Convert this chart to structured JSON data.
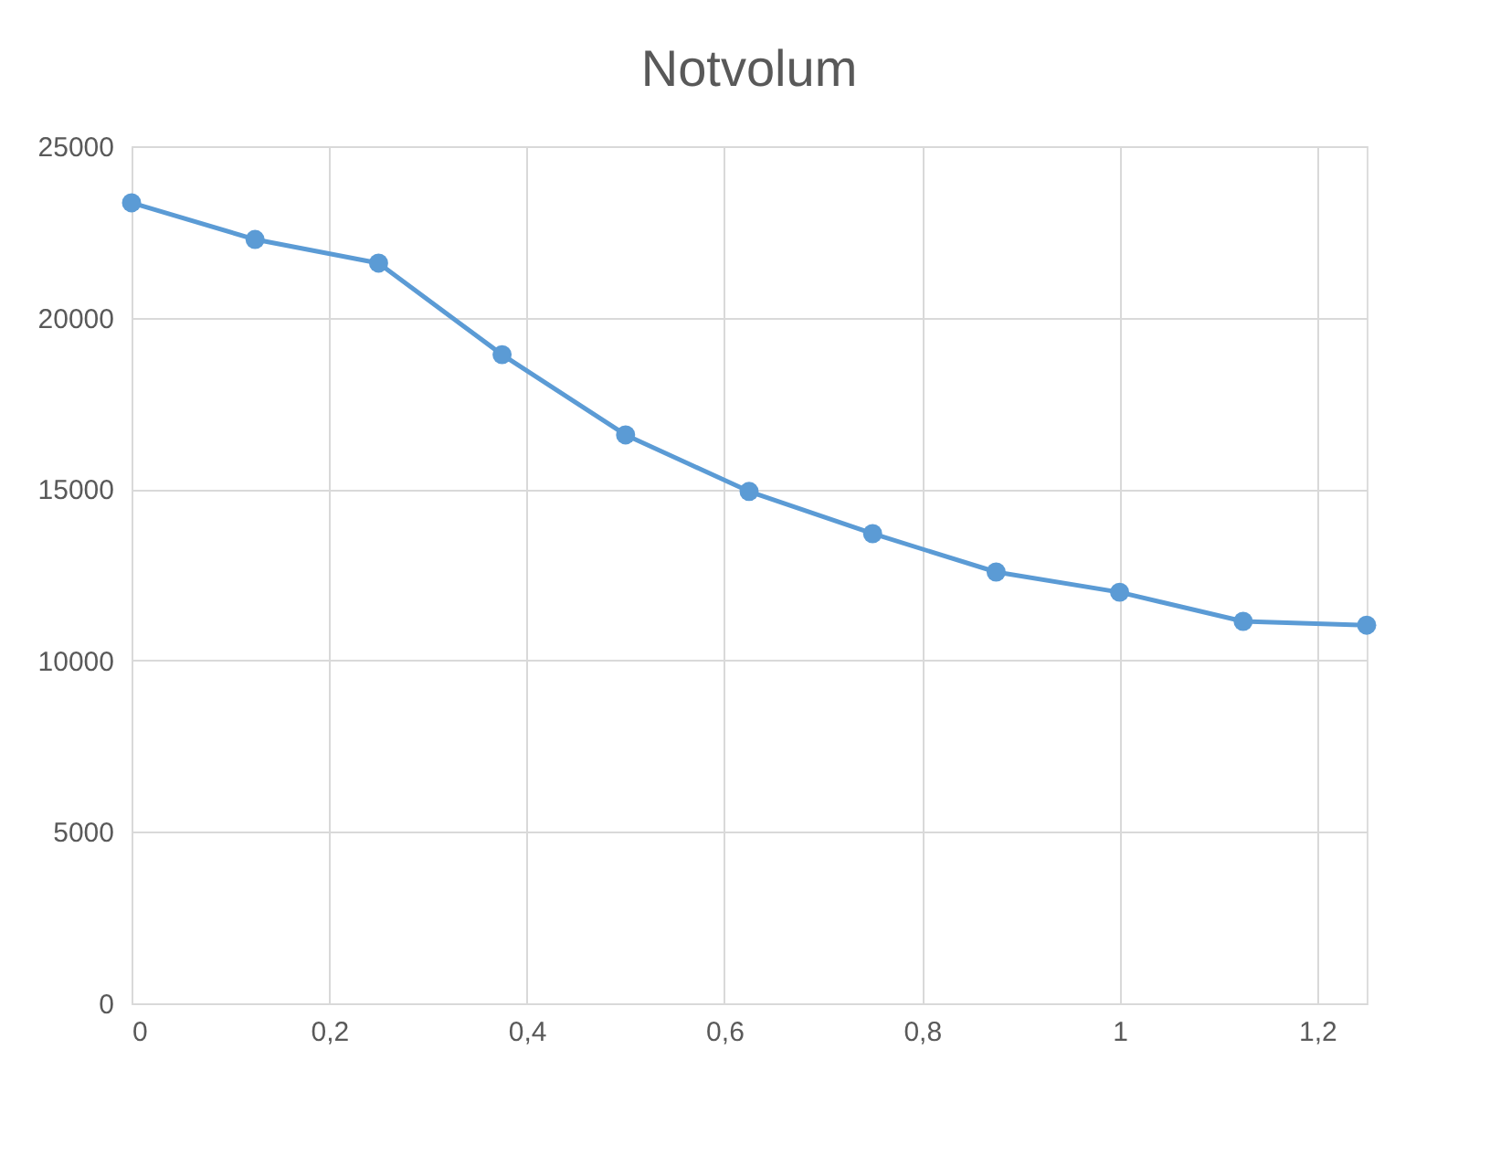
{
  "chart_data": {
    "type": "line",
    "title": "Notvolum",
    "x": [
      0,
      0.125,
      0.25,
      0.375,
      0.5,
      0.625,
      0.75,
      0.875,
      1,
      1.125,
      1.25
    ],
    "series": [
      {
        "color": "#5b9bd5",
        "values": [
          23350,
          22280,
          21590,
          18920,
          16580,
          14930,
          13700,
          12580,
          11990,
          11140,
          11030
        ]
      }
    ],
    "xlim": [
      0,
      1.25
    ],
    "xticks": [
      0,
      {
        "value": 0.2,
        "label": "0,2"
      },
      {
        "value": 0.4,
        "label": "0,4"
      },
      {
        "value": 0.6,
        "label": "0,6"
      },
      {
        "value": 0.8,
        "label": "0,8"
      },
      1,
      {
        "value": 1.2,
        "label": "1,2"
      }
    ],
    "ylim": [
      0,
      25000
    ],
    "yticks": [
      0,
      5000,
      10000,
      15000,
      20000,
      25000
    ],
    "grid": true,
    "marker": "circle",
    "line_style": "solid"
  }
}
